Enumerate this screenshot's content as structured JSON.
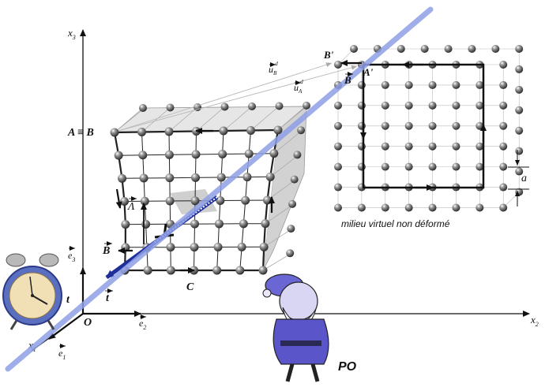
{
  "labels": {
    "axis_x1": "x",
    "axis_x1_sub": "1",
    "axis_x2": "x",
    "axis_x2_sub": "2",
    "axis_x3": "x",
    "axis_x3_sub": "3",
    "origin": "O",
    "e1": "e",
    "e1_sub": "1",
    "e2": "e",
    "e2_sub": "2",
    "e3": "e",
    "e3_sub": "3",
    "a_eq_b": "A ≡ B",
    "b_prime": "B'",
    "a_prime": "A'",
    "b_right": "B",
    "b_left": "B",
    "lambda": "Λ",
    "c": "C",
    "t_vec": "t",
    "t_clock": "t",
    "a_dim": "a",
    "u_b": "u",
    "u_b_sub": "B",
    "u_b_sup": "d",
    "u_a": "u",
    "u_a_sub": "A",
    "u_a_sup": "d",
    "caption": "milieu virtuel non déformé",
    "po": "PO"
  },
  "colors": {
    "line_blue": "#8f9fe6",
    "dislocation": "#1f2f9a",
    "sphere": "#555555",
    "face_top": "#e4e4e4",
    "face_side": "#d0d0d0",
    "figure": "#5a55c8"
  }
}
